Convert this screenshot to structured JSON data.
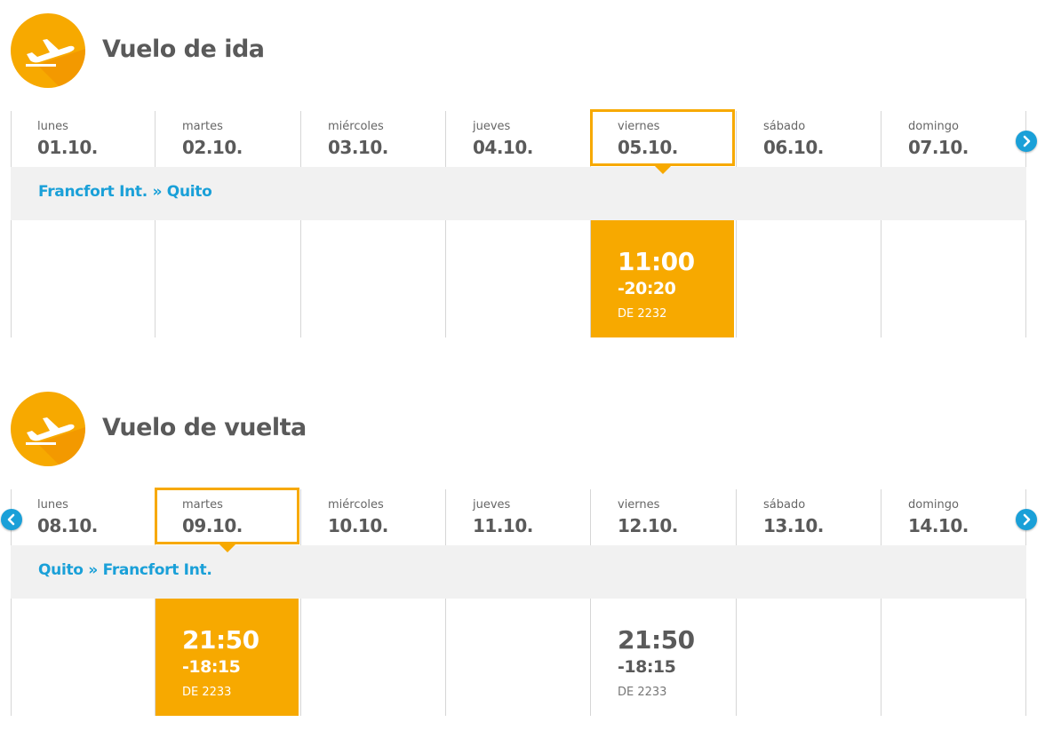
{
  "colors": {
    "accent": "#f7a900",
    "link": "#1aa0d8",
    "route_bg": "#f1f1f1"
  },
  "outbound": {
    "title": "Vuelo de ida",
    "icon": "plane-takeoff-icon",
    "route": "Francfort Int. » Quito",
    "days": [
      {
        "name": "lunes",
        "date": "01.10."
      },
      {
        "name": "martes",
        "date": "02.10."
      },
      {
        "name": "miércoles",
        "date": "03.10."
      },
      {
        "name": "jueves",
        "date": "04.10."
      },
      {
        "name": "viernes",
        "date": "05.10."
      },
      {
        "name": "sábado",
        "date": "06.10."
      },
      {
        "name": "domingo",
        "date": "07.10."
      }
    ],
    "selected_day_index": 4,
    "flights": [
      {
        "day_index": 4,
        "departure": "11:00",
        "arrival": "-20:20",
        "flight_number": "DE 2232",
        "selected": true
      }
    ],
    "next_icon": "chevron-right-icon"
  },
  "return": {
    "title": "Vuelo de vuelta",
    "icon": "plane-takeoff-icon",
    "route": "Quito » Francfort Int.",
    "days": [
      {
        "name": "lunes",
        "date": "08.10."
      },
      {
        "name": "martes",
        "date": "09.10."
      },
      {
        "name": "miércoles",
        "date": "10.10."
      },
      {
        "name": "jueves",
        "date": "11.10."
      },
      {
        "name": "viernes",
        "date": "12.10."
      },
      {
        "name": "sábado",
        "date": "13.10."
      },
      {
        "name": "domingo",
        "date": "14.10."
      }
    ],
    "selected_day_index": 1,
    "flights": [
      {
        "day_index": 1,
        "departure": "21:50",
        "arrival": "-18:15",
        "flight_number": "DE 2233",
        "selected": true
      },
      {
        "day_index": 4,
        "departure": "21:50",
        "arrival": "-18:15",
        "flight_number": "DE 2233",
        "selected": false
      }
    ],
    "prev_icon": "chevron-left-icon",
    "next_icon": "chevron-right-icon"
  }
}
